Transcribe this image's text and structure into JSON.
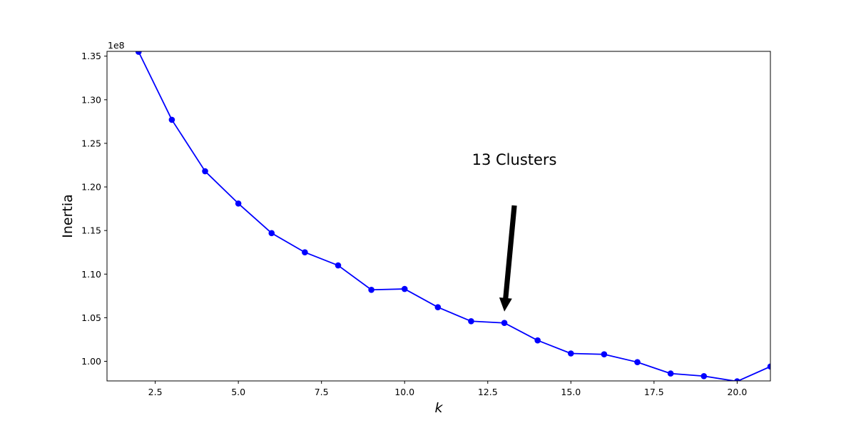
{
  "chart_data": {
    "type": "line",
    "xlabel": "k",
    "ylabel": "Inertia",
    "y_offset_label": "1e8",
    "xlim": [
      1.05,
      21.0
    ],
    "ylim": [
      0.9775,
      1.3555
    ],
    "x_ticks": [
      2.5,
      5.0,
      7.5,
      10.0,
      12.5,
      15.0,
      17.5,
      20.0
    ],
    "x_tick_labels": [
      "2.5",
      "5.0",
      "7.5",
      "10.0",
      "12.5",
      "15.0",
      "17.5",
      "20.0"
    ],
    "y_ticks": [
      1.0,
      1.05,
      1.1,
      1.15,
      1.2,
      1.25,
      1.3,
      1.35
    ],
    "y_tick_labels": [
      "1.00",
      "1.05",
      "1.10",
      "1.15",
      "1.20",
      "1.25",
      "1.30",
      "1.35"
    ],
    "grid": false,
    "series": [
      {
        "color": "#0000ff",
        "marker": "circle",
        "x": [
          2,
          3,
          4,
          5,
          6,
          7,
          8,
          9,
          10,
          11,
          12,
          13,
          14,
          15,
          16,
          17,
          18,
          19,
          20,
          21
        ],
        "y": [
          1.355,
          1.277,
          1.218,
          1.181,
          1.147,
          1.125,
          1.11,
          1.082,
          1.083,
          1.062,
          1.046,
          1.044,
          1.024,
          1.009,
          1.008,
          0.999,
          0.986,
          0.983,
          0.977,
          0.994
        ]
      }
    ],
    "annotation": {
      "text": "13 Clusters",
      "target": [
        13,
        1.044
      ],
      "text_position": [
        13.3,
        1.2
      ],
      "arrow_color": "#000000"
    }
  }
}
